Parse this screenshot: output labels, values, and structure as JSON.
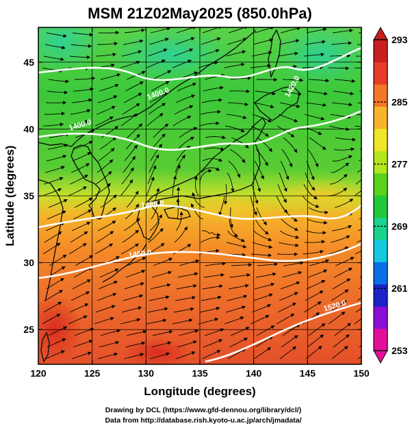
{
  "title": "MSM 21Z02May2025 (850.0hPa)",
  "x_axis": {
    "label": "Longitude (degrees)",
    "ticks": [
      "120",
      "125",
      "130",
      "135",
      "140",
      "145",
      "150"
    ],
    "range": [
      120,
      150
    ]
  },
  "y_axis": {
    "label": "Latitude  (degrees)",
    "ticks": [
      "25",
      "30",
      "35",
      "40",
      "45"
    ],
    "range": [
      22.4,
      47.6
    ]
  },
  "colorbar": {
    "ticks": [
      "293",
      "285",
      "277",
      "269",
      "261",
      "253"
    ],
    "range": [
      253,
      293
    ],
    "colors": [
      "#e60f9a",
      "#8a0fd6",
      "#1a22c8",
      "#0a6ee6",
      "#14c8e0",
      "#1ad28c",
      "#20c83a",
      "#5ad21e",
      "#b4e61e",
      "#f0e628",
      "#f5b42a",
      "#f57828",
      "#e63c28",
      "#c81e1e"
    ]
  },
  "contours": [
    {
      "label": "1400.0"
    },
    {
      "label": "1420.0"
    },
    {
      "label": "1440.0"
    },
    {
      "label": "1460.0"
    },
    {
      "label": "1480.0"
    },
    {
      "label": "1500.0"
    },
    {
      "label": "1520.0"
    }
  ],
  "credits": {
    "line1": "Drawing by DCL (https://www.gfd-dennou.org/library/dcl/)",
    "line2": "Data from http://database.rish.kyoto-u.ac.jp/arch/jmadata/"
  }
}
